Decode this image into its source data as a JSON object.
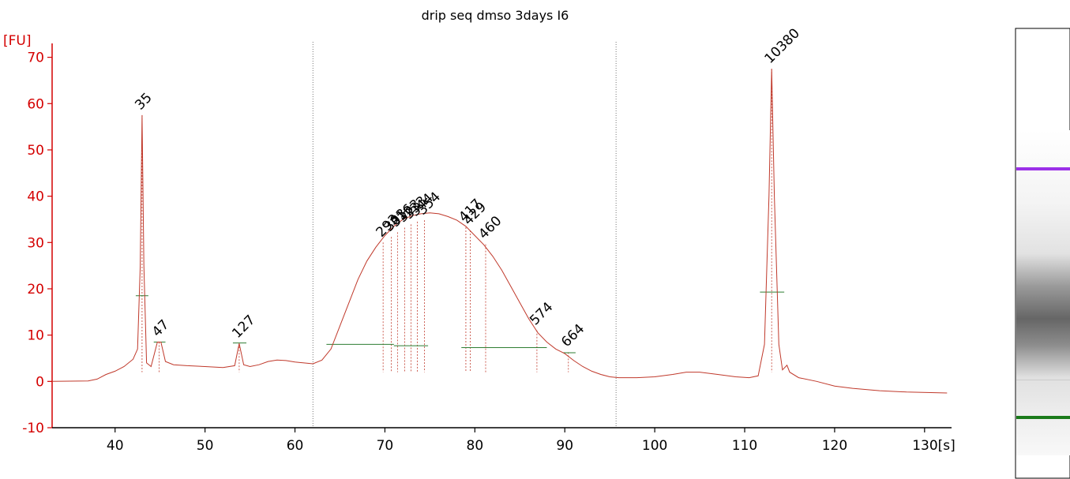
{
  "chart_data": {
    "type": "line",
    "title": "drip seq dmso 3days I6",
    "ylabel": "[FU]",
    "xlabel": "",
    "x_unit_label": "[s]",
    "xlim": [
      33,
      133
    ],
    "ylim": [
      -10,
      73
    ],
    "x_ticks": [
      40,
      50,
      60,
      70,
      80,
      90,
      100,
      110,
      120,
      130
    ],
    "x_tick_labels": [
      "40",
      "50",
      "60",
      "70",
      "80",
      "90",
      "100",
      "110",
      "120",
      "130[s]"
    ],
    "y_ticks": [
      -10,
      0,
      10,
      20,
      30,
      40,
      50,
      60,
      70
    ],
    "y_tick_labels": [
      "-10",
      "0",
      "10",
      "20",
      "30",
      "40",
      "50",
      "60",
      "70"
    ],
    "colors": {
      "trace": "#c0392b",
      "axis": "#d40000",
      "lower_marker": "#1a7a1a",
      "upper_marker": "#9b30e8",
      "baseline_bar": "#2e7d32",
      "region_line": "#777777"
    },
    "region_markers_x": [
      62,
      95.7
    ],
    "trace": [
      [
        33,
        0
      ],
      [
        37,
        0.1
      ],
      [
        38,
        0.5
      ],
      [
        39,
        1.5
      ],
      [
        40,
        2.2
      ],
      [
        41,
        3.2
      ],
      [
        42,
        4.8
      ],
      [
        42.5,
        7
      ],
      [
        42.8,
        25
      ],
      [
        43,
        57.5
      ],
      [
        43.2,
        25
      ],
      [
        43.5,
        4
      ],
      [
        44,
        3.2
      ],
      [
        44.7,
        8.5
      ],
      [
        45.1,
        8.5
      ],
      [
        45.6,
        4.3
      ],
      [
        46.5,
        3.6
      ],
      [
        48,
        3.4
      ],
      [
        50,
        3.2
      ],
      [
        52,
        3
      ],
      [
        53.3,
        3.4
      ],
      [
        53.8,
        8.2
      ],
      [
        54.3,
        3.6
      ],
      [
        55,
        3.2
      ],
      [
        56,
        3.6
      ],
      [
        57,
        4.3
      ],
      [
        58,
        4.6
      ],
      [
        59,
        4.5
      ],
      [
        60,
        4.2
      ],
      [
        61,
        4
      ],
      [
        62,
        3.8
      ],
      [
        63,
        4.6
      ],
      [
        64,
        7
      ],
      [
        65,
        12
      ],
      [
        66,
        17
      ],
      [
        67,
        22
      ],
      [
        68,
        26
      ],
      [
        69,
        29
      ],
      [
        70,
        31.5
      ],
      [
        71,
        33.5
      ],
      [
        72,
        35
      ],
      [
        73,
        35.8
      ],
      [
        74,
        36.2
      ],
      [
        75,
        36.4
      ],
      [
        76,
        36.2
      ],
      [
        77,
        35.6
      ],
      [
        78,
        34.8
      ],
      [
        79,
        33.5
      ],
      [
        80,
        31.5
      ],
      [
        81,
        29.5
      ],
      [
        82,
        27
      ],
      [
        83,
        24
      ],
      [
        84,
        20.5
      ],
      [
        85,
        17
      ],
      [
        86,
        13.5
      ],
      [
        87,
        10.5
      ],
      [
        88,
        8.5
      ],
      [
        89,
        7
      ],
      [
        90,
        6
      ],
      [
        91,
        4.5
      ],
      [
        92,
        3.2
      ],
      [
        93,
        2.2
      ],
      [
        94,
        1.5
      ],
      [
        95,
        1
      ],
      [
        96,
        0.8
      ],
      [
        98,
        0.8
      ],
      [
        100,
        1
      ],
      [
        102,
        1.5
      ],
      [
        103.5,
        2
      ],
      [
        105,
        2
      ],
      [
        107,
        1.5
      ],
      [
        109,
        1
      ],
      [
        110.5,
        0.8
      ],
      [
        111.5,
        1.2
      ],
      [
        112.2,
        8
      ],
      [
        112.7,
        40
      ],
      [
        113,
        67.5
      ],
      [
        113.3,
        40
      ],
      [
        113.8,
        8
      ],
      [
        114.2,
        2.5
      ],
      [
        114.7,
        3.5
      ],
      [
        115,
        2
      ],
      [
        116,
        0.8
      ],
      [
        118,
        0
      ],
      [
        120,
        -1
      ],
      [
        122,
        -1.5
      ],
      [
        125,
        -2
      ],
      [
        128,
        -2.3
      ],
      [
        132.5,
        -2.5
      ]
    ],
    "peaks": [
      {
        "label": "35",
        "x": 43,
        "y": 57.5,
        "marker": "lower",
        "bar": [
          42.3,
          43.7,
          18.5
        ]
      },
      {
        "label": "47",
        "x": 44.9,
        "y": 8.5,
        "bar": [
          44.3,
          45.6,
          8.5
        ]
      },
      {
        "label": "127",
        "x": 53.8,
        "y": 8.2,
        "bar": [
          53.1,
          54.6,
          8.3
        ]
      },
      {
        "label": "293",
        "x": 69.8,
        "y": 30
      },
      {
        "label": "303",
        "x": 70.7,
        "y": 31.2
      },
      {
        "label": "316",
        "x": 71.4,
        "y": 32.2
      },
      {
        "label": "323",
        "x": 72.2,
        "y": 33.2
      },
      {
        "label": "333",
        "x": 72.9,
        "y": 33.9
      },
      {
        "label": "344",
        "x": 73.6,
        "y": 34.5
      },
      {
        "label": "354",
        "x": 74.4,
        "y": 34.8
      },
      {
        "label": "417",
        "x": 79,
        "y": 33.3
      },
      {
        "label": "429",
        "x": 79.5,
        "y": 32.6
      },
      {
        "label": "460",
        "x": 81.2,
        "y": 29.6
      },
      {
        "label": "574",
        "x": 86.9,
        "y": 11
      },
      {
        "label": "664",
        "x": 90.4,
        "y": 6.3,
        "bar": [
          89.8,
          91.2,
          6.2
        ]
      },
      {
        "label": "10380",
        "x": 113,
        "y": 67.5,
        "marker": "upper",
        "bar": [
          111.7,
          114.4,
          19.3
        ]
      }
    ],
    "baseline_bars": [
      [
        63.5,
        71,
        8
      ],
      [
        71,
        74.8,
        7.7
      ],
      [
        78.5,
        88,
        7.3
      ]
    ],
    "gel": {
      "bands": [
        {
          "name": "upper-marker",
          "color": "#9b30e8",
          "position": 0.24,
          "strength": 1
        },
        {
          "name": "lower-marker",
          "color": "#1a7a1a",
          "position": 0.91,
          "strength": 1
        }
      ]
    }
  }
}
